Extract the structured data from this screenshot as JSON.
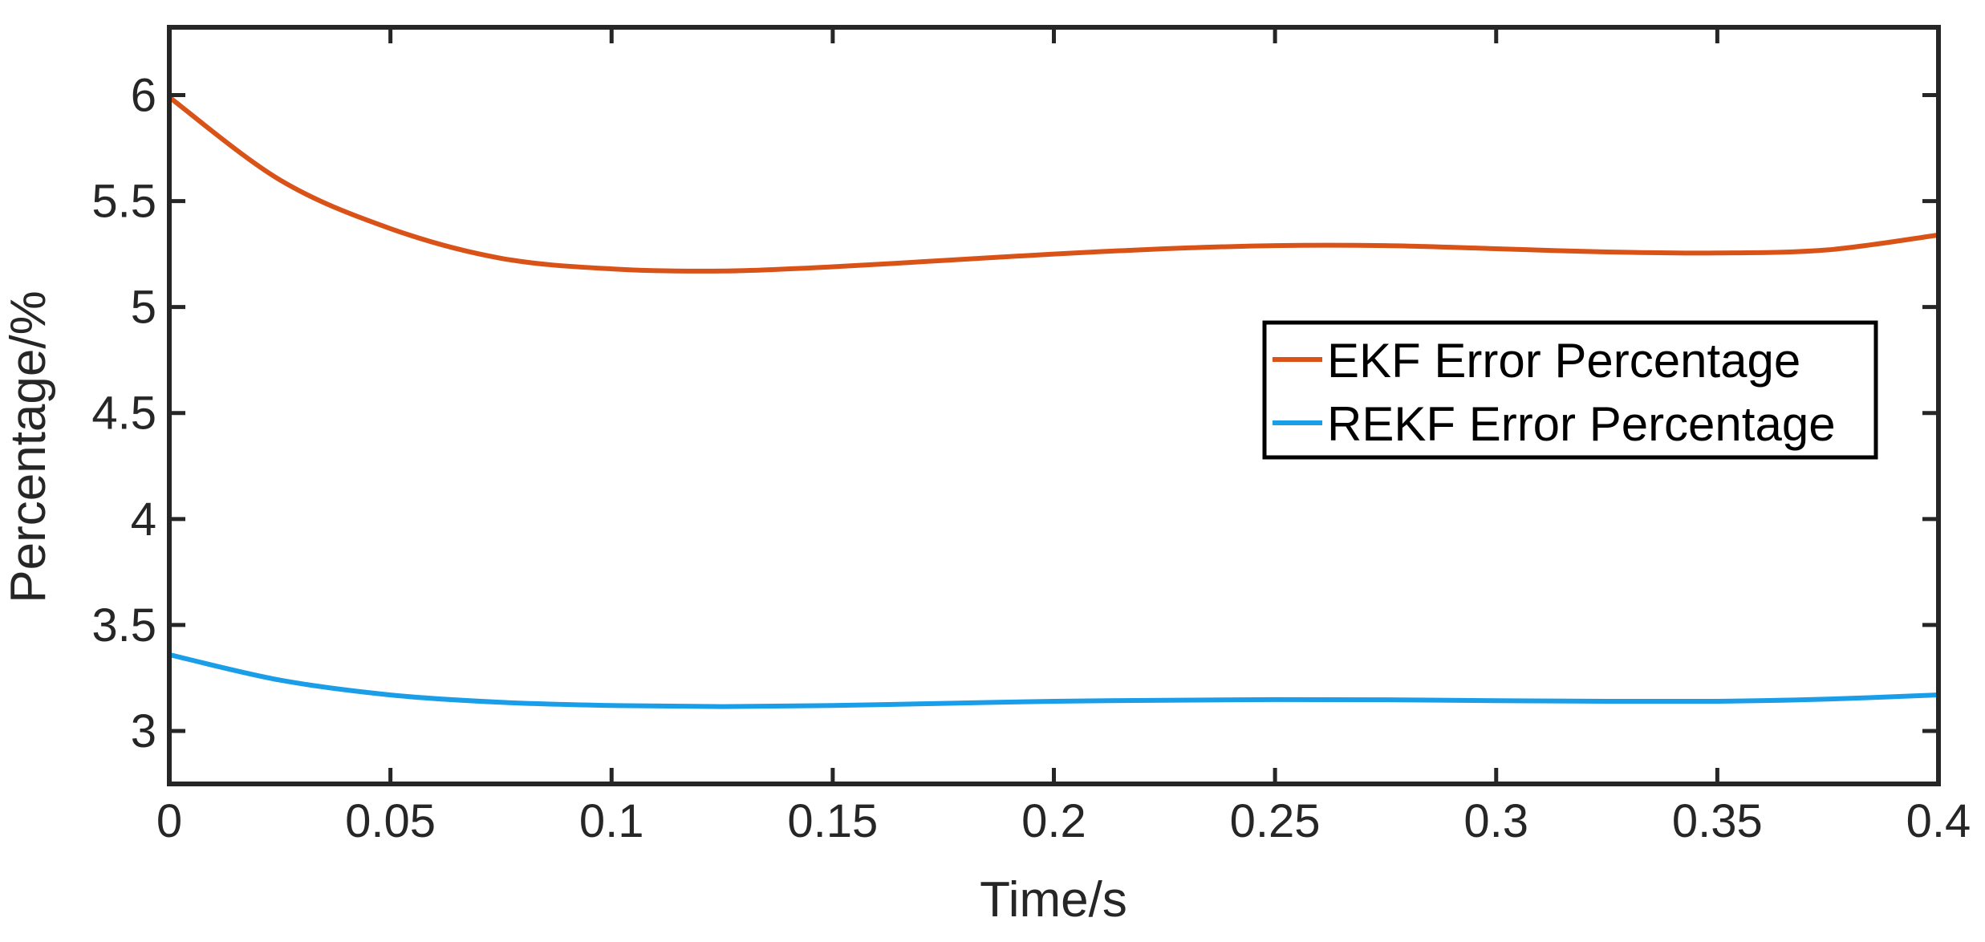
{
  "chart_data": {
    "type": "line",
    "xlabel": "Time/s",
    "ylabel": "Percentage/%",
    "xlim": [
      0,
      0.4
    ],
    "ylim": [
      2.75,
      6.32
    ],
    "xticks": [
      0,
      0.05,
      0.1,
      0.15,
      0.2,
      0.25,
      0.3,
      0.35,
      0.4
    ],
    "xtick_labels": [
      "0",
      "0.05",
      "0.1",
      "0.15",
      "0.2",
      "0.25",
      "0.3",
      "0.35",
      "0.4"
    ],
    "yticks": [
      3,
      3.5,
      4,
      4.5,
      5,
      5.5,
      6
    ],
    "ytick_labels": [
      "3",
      "3.5",
      "4",
      "4.5",
      "5",
      "5.5",
      "6"
    ],
    "grid": false,
    "legend_position": "center-right",
    "series": [
      {
        "name": "EKF Error Percentage",
        "color": "#d95319",
        "x": [
          0,
          0.025,
          0.05,
          0.075,
          0.1,
          0.125,
          0.15,
          0.175,
          0.2,
          0.225,
          0.25,
          0.275,
          0.3,
          0.325,
          0.35,
          0.375,
          0.4
        ],
        "y": [
          5.99,
          5.6,
          5.37,
          5.23,
          5.18,
          5.17,
          5.19,
          5.22,
          5.25,
          5.275,
          5.29,
          5.29,
          5.275,
          5.26,
          5.255,
          5.27,
          5.34
        ]
      },
      {
        "name": "REKF Error Percentage",
        "color": "#1a9ee8",
        "x": [
          0,
          0.025,
          0.05,
          0.075,
          0.1,
          0.125,
          0.15,
          0.175,
          0.2,
          0.225,
          0.25,
          0.275,
          0.3,
          0.325,
          0.35,
          0.375,
          0.4
        ],
        "y": [
          3.36,
          3.24,
          3.17,
          3.135,
          3.12,
          3.115,
          3.12,
          3.13,
          3.14,
          3.145,
          3.148,
          3.147,
          3.143,
          3.14,
          3.14,
          3.15,
          3.17
        ]
      }
    ]
  }
}
